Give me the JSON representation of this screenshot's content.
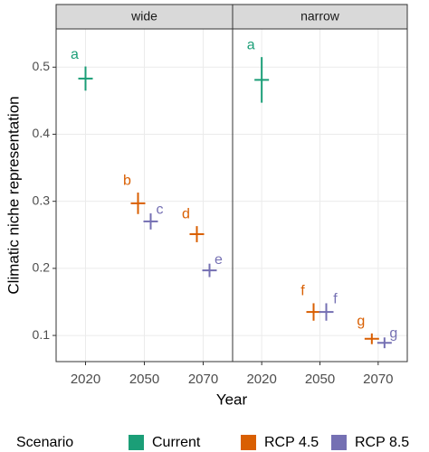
{
  "chart_data": {
    "type": "errorbar",
    "y_label": "Climatic niche representation",
    "x_label": "Year",
    "legend_title": "Scenario",
    "categories": [
      "2020",
      "2050",
      "2070"
    ],
    "ylim": [
      0.061,
      0.557
    ],
    "yticks": [
      0.1,
      0.2,
      0.3,
      0.4,
      0.5
    ],
    "grid": true,
    "series": [
      {
        "name": "Current",
        "color": "#1b9e77"
      },
      {
        "name": "RCP 4.5",
        "color": "#d95f02"
      },
      {
        "name": "RCP 8.5",
        "color": "#7570b3"
      }
    ],
    "facets": [
      {
        "title": "wide",
        "series": [
          {
            "values": [
              0.483,
              null,
              null
            ],
            "errors": [
              0.018,
              null,
              null
            ],
            "labels": [
              "a",
              null,
              null
            ]
          },
          {
            "values": [
              null,
              0.297,
              0.251
            ],
            "errors": [
              null,
              0.016,
              0.012
            ],
            "labels": [
              null,
              "b",
              "d"
            ]
          },
          {
            "values": [
              null,
              0.27,
              0.197
            ],
            "errors": [
              null,
              0.012,
              0.01
            ],
            "labels": [
              null,
              "c",
              "e"
            ]
          }
        ]
      },
      {
        "title": "narrow",
        "series": [
          {
            "values": [
              0.481,
              null,
              null
            ],
            "errors": [
              0.034,
              null,
              null
            ],
            "labels": [
              "a",
              null,
              null
            ]
          },
          {
            "values": [
              null,
              0.135,
              0.095
            ],
            "errors": [
              null,
              0.013,
              0.008
            ],
            "labels": [
              null,
              "f",
              "g"
            ]
          },
          {
            "values": [
              null,
              0.135,
              0.089
            ],
            "errors": [
              null,
              0.013,
              0.008
            ],
            "labels": [
              null,
              "f",
              "g"
            ]
          }
        ]
      }
    ]
  }
}
